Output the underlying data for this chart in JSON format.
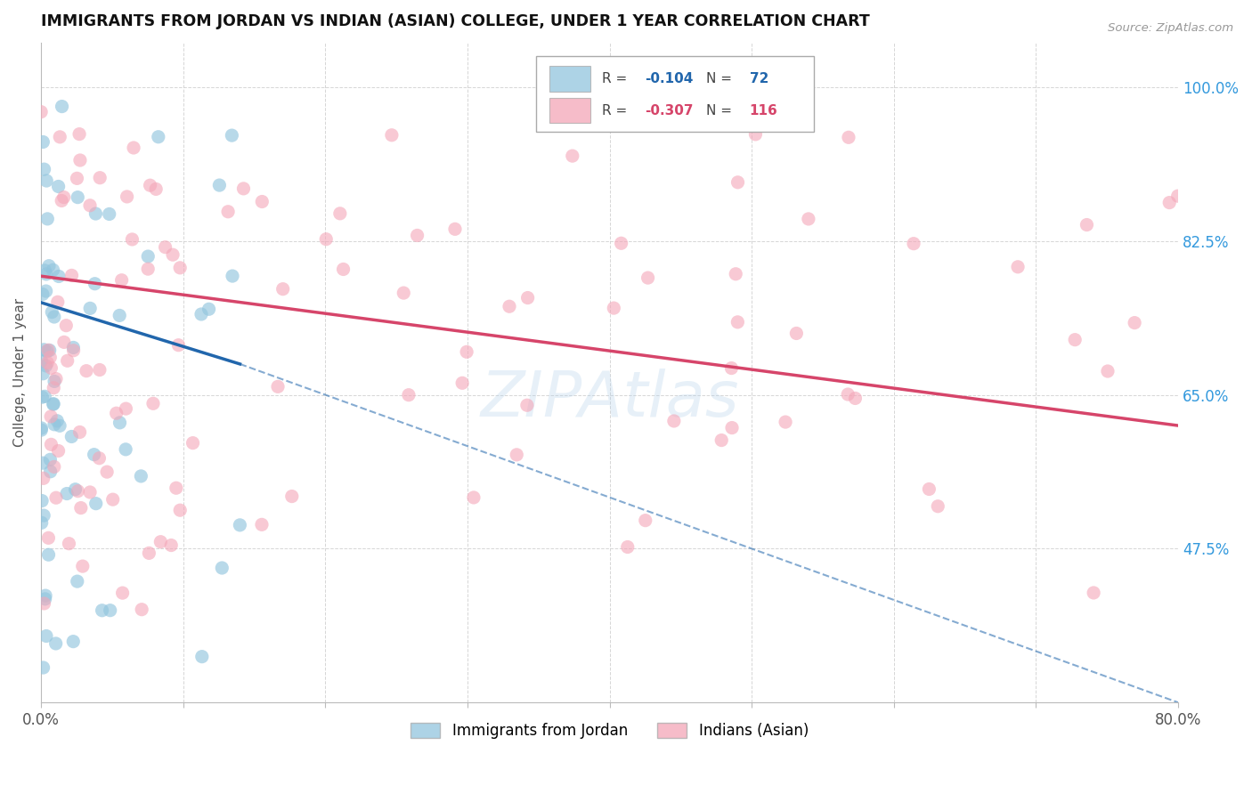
{
  "title": "IMMIGRANTS FROM JORDAN VS INDIAN (ASIAN) COLLEGE, UNDER 1 YEAR CORRELATION CHART",
  "source": "Source: ZipAtlas.com",
  "ylabel": "College, Under 1 year",
  "ytick_labels": [
    "100.0%",
    "82.5%",
    "65.0%",
    "47.5%"
  ],
  "ytick_values": [
    1.0,
    0.825,
    0.65,
    0.475
  ],
  "legend_blue_R": "-0.104",
  "legend_blue_N": "72",
  "legend_pink_R": "-0.307",
  "legend_pink_N": "116",
  "legend_label_blue": "Immigrants from Jordan",
  "legend_label_pink": "Indians (Asian)",
  "blue_color": "#92c5de",
  "pink_color": "#f4a6b8",
  "blue_line_color": "#2166ac",
  "pink_line_color": "#d6456a",
  "xlim": [
    0.0,
    0.8
  ],
  "ylim": [
    0.3,
    1.05
  ],
  "blue_seed": 77,
  "pink_seed": 88,
  "blue_trendline": [
    0.0,
    0.755,
    0.14,
    0.685
  ],
  "blue_dashed": [
    0.14,
    0.685,
    0.8,
    0.3
  ],
  "pink_trendline": [
    0.0,
    0.785,
    0.8,
    0.615
  ]
}
